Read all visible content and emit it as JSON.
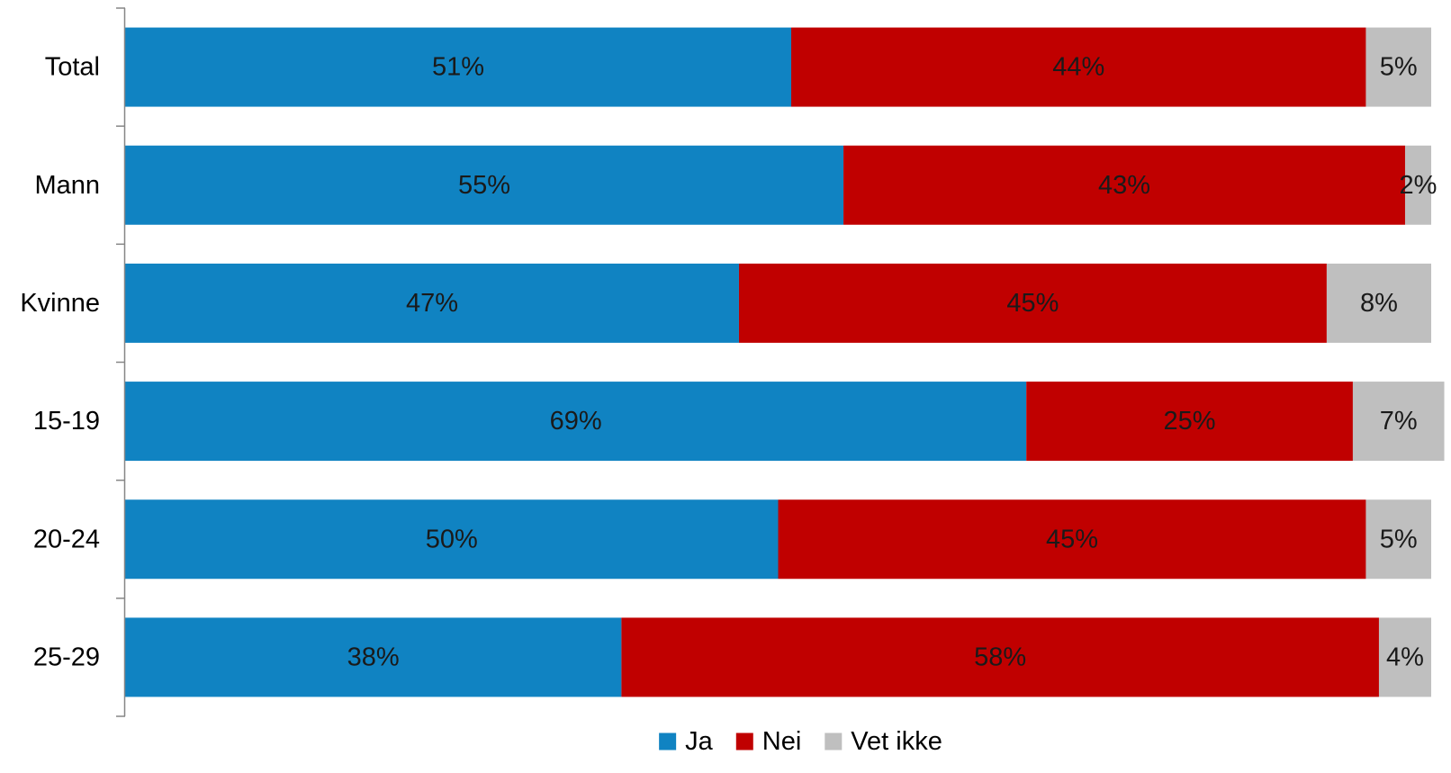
{
  "chart_data": {
    "type": "bar",
    "orientation": "horizontal",
    "stacked": true,
    "percent": true,
    "title": "",
    "xlabel": "",
    "ylabel": "",
    "xlim": [
      0,
      100
    ],
    "grid": false,
    "legend_position": "bottom",
    "categories": [
      "Total",
      "Mann",
      "Kvinne",
      "15-19",
      "20-24",
      "25-29"
    ],
    "series": [
      {
        "name": "Ja",
        "color": "#1083c2",
        "values": [
          51,
          55,
          47,
          69,
          50,
          38
        ],
        "labels": [
          "51%",
          "55%",
          "47%",
          "69%",
          "50%",
          "38%"
        ]
      },
      {
        "name": "Nei",
        "color": "#c00000",
        "values": [
          44,
          43,
          45,
          25,
          45,
          58
        ],
        "labels": [
          "44%",
          "43%",
          "45%",
          "25%",
          "45%",
          "58%"
        ]
      },
      {
        "name": "Vet ikke",
        "color": "#bfbfbf",
        "values": [
          5,
          2,
          8,
          7,
          5,
          4
        ],
        "labels": [
          "5%",
          "2%",
          "8%",
          "7%",
          "5%",
          "4%"
        ]
      }
    ]
  }
}
